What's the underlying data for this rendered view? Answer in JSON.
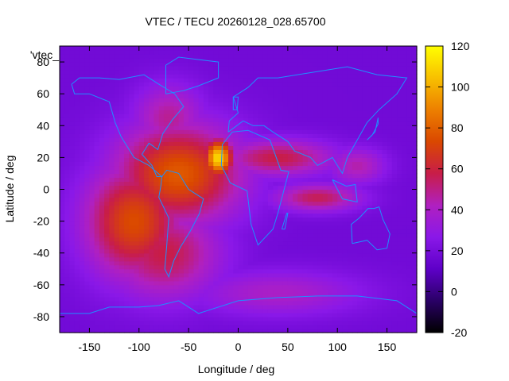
{
  "chart_data": {
    "type": "heatmap",
    "title": "VTEC / TECU 20260128_028.65700",
    "xlabel": "Longitude / deg",
    "ylabel": "Latitude / deg",
    "series_label": "'vtec_",
    "xlim": [
      -180,
      180
    ],
    "ylim": [
      -90,
      90
    ],
    "xticks": [
      -150,
      -100,
      -50,
      0,
      50,
      100,
      150
    ],
    "yticks": [
      -80,
      -60,
      -40,
      -20,
      0,
      20,
      40,
      60,
      80
    ],
    "colorbar": {
      "range": [
        -20,
        120
      ],
      "ticks": [
        -20,
        0,
        20,
        40,
        60,
        80,
        100,
        120
      ],
      "colormap": [
        "#000000",
        "#2a0066",
        "#5e00c8",
        "#8a18e8",
        "#b020c0",
        "#c81d48",
        "#da4800",
        "#ed8000",
        "#f8c000",
        "#ffff00"
      ]
    },
    "background_value": 18,
    "maxima": [
      {
        "lon": -20,
        "lat": 20,
        "value": 112,
        "spread_lon": 10,
        "spread_lat": 8
      },
      {
        "lon": -60,
        "lat": 10,
        "value": 78,
        "spread_lon": 45,
        "spread_lat": 22
      },
      {
        "lon": -105,
        "lat": -20,
        "value": 74,
        "spread_lon": 35,
        "spread_lat": 25
      },
      {
        "lon": -75,
        "lat": -40,
        "value": 58,
        "spread_lon": 40,
        "spread_lat": 20
      },
      {
        "lon": -70,
        "lat": 45,
        "value": 48,
        "spread_lon": 25,
        "spread_lat": 15
      },
      {
        "lon": 40,
        "lat": 20,
        "value": 58,
        "spread_lon": 40,
        "spread_lat": 8
      },
      {
        "lon": 80,
        "lat": -5,
        "value": 56,
        "spread_lon": 30,
        "spread_lat": 6
      },
      {
        "lon": 120,
        "lat": 15,
        "value": 45,
        "spread_lon": 20,
        "spread_lat": 8
      },
      {
        "lon": 40,
        "lat": -65,
        "value": 40,
        "spread_lon": 60,
        "spread_lat": 10
      }
    ],
    "coastlines": true
  }
}
